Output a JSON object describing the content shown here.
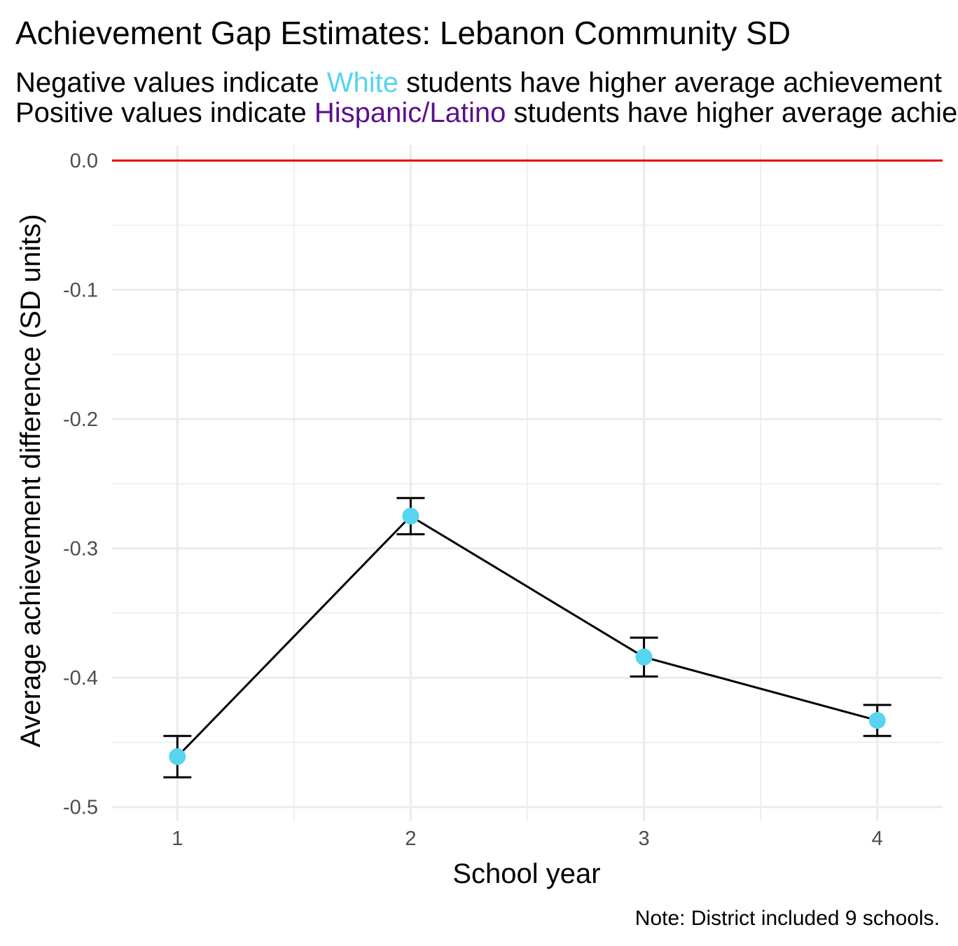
{
  "chart_data": {
    "type": "line",
    "title": "Achievement Gap Estimates: Lebanon Community SD",
    "subtitle_line1": {
      "prefix": "Negative values indicate ",
      "group": "White",
      "suffix": " students have higher average achievement",
      "group_color": "#56d4f0"
    },
    "subtitle_line2": {
      "prefix": "Positive values indicate ",
      "group": "Hispanic/Latino",
      "suffix": " students have higher average achievement",
      "group_color": "#5b0f8e"
    },
    "xlabel": "School year",
    "ylabel": "Average achievement difference (SD units)",
    "caption": "Note: District included 9 schools.",
    "x": [
      1,
      2,
      3,
      4
    ],
    "y": [
      -0.461,
      -0.275,
      -0.384,
      -0.433
    ],
    "y_lower": [
      -0.477,
      -0.289,
      -0.399,
      -0.445
    ],
    "y_upper": [
      -0.445,
      -0.261,
      -0.369,
      -0.421
    ],
    "xlim": [
      0.72,
      4.28
    ],
    "ylim": [
      -0.511,
      0.012
    ],
    "x_ticks": [
      1,
      2,
      3,
      4
    ],
    "y_ticks": [
      -0.5,
      -0.4,
      -0.3,
      -0.2,
      -0.1,
      0.0
    ],
    "y_tick_labels": [
      "-0.5",
      "-0.4",
      "-0.3",
      "-0.2",
      "-0.1",
      "0.0"
    ],
    "reference_line": 0.0,
    "point_color": "#56d4f0",
    "line_color": "#000000",
    "reference_color": "#e8000b",
    "grid": true,
    "legend": "none"
  }
}
